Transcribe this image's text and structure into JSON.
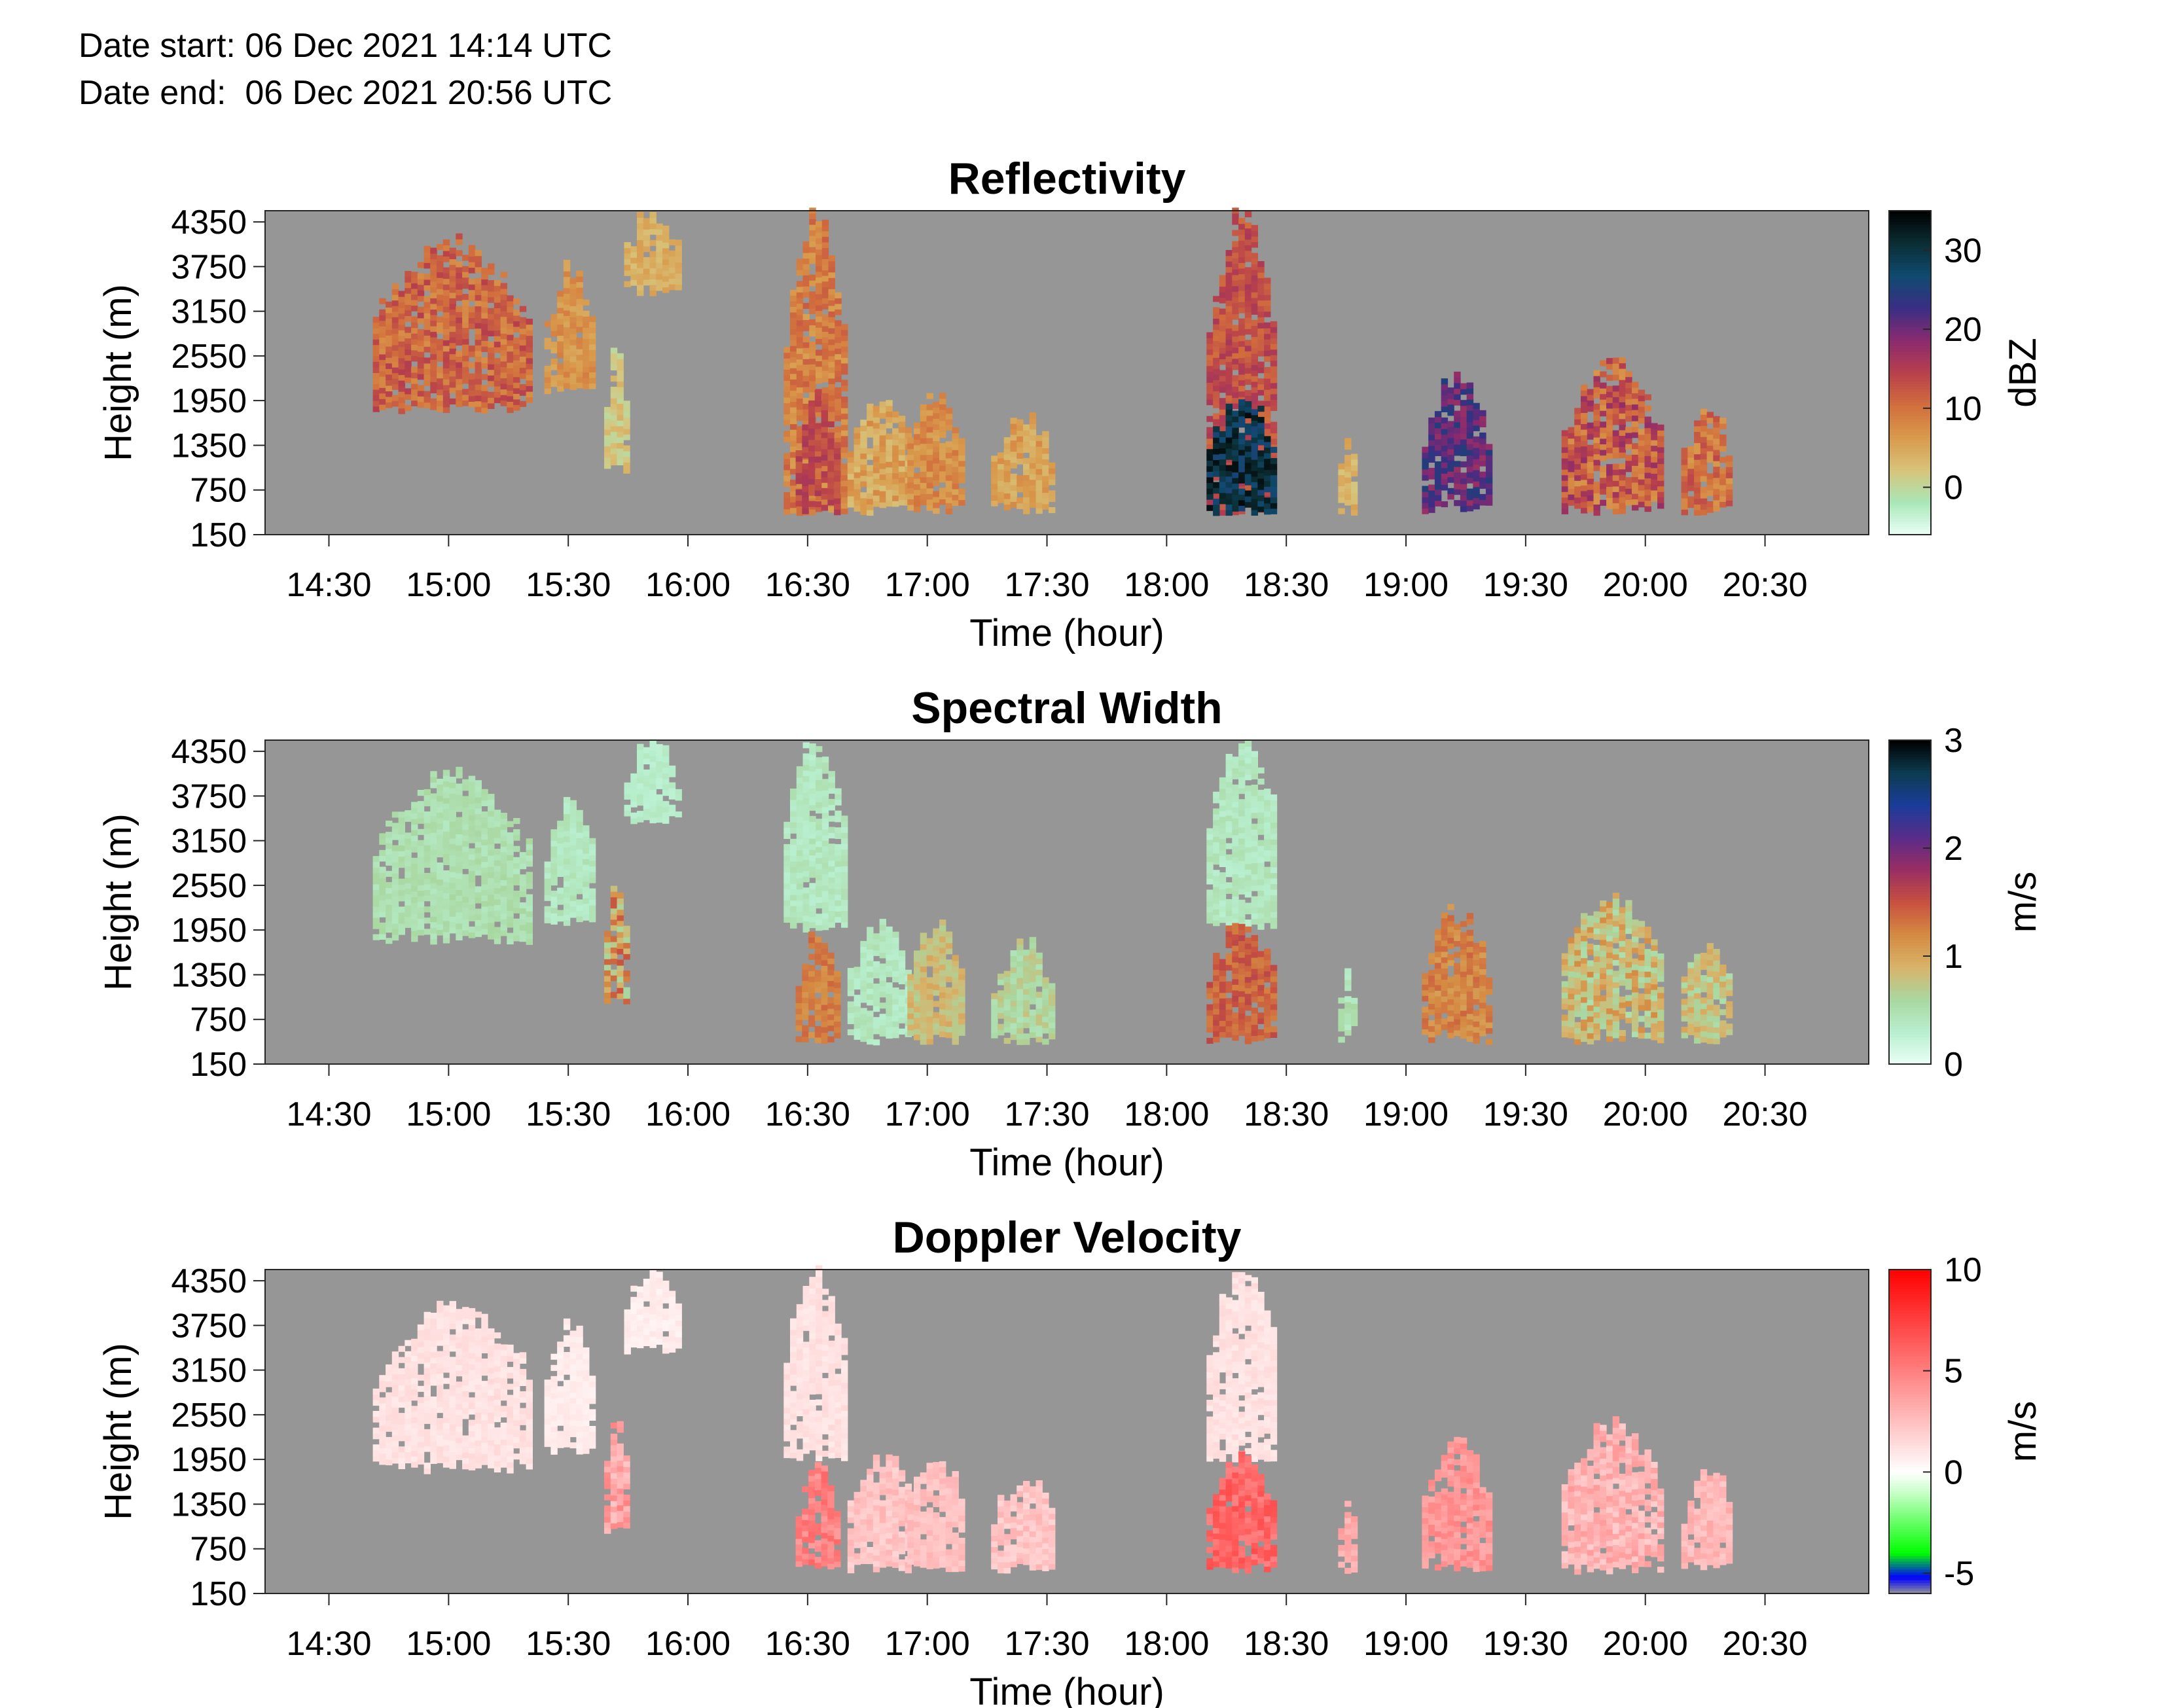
{
  "header": {
    "date_start": "Date start: 06 Dec 2021 14:14 UTC",
    "date_end": "Date end:  06 Dec 2021 20:56 UTC"
  },
  "colors": {
    "background": "#ffffff",
    "no_data": "#969696",
    "reflectivity_scale": [
      "#ebfff7",
      "#a8e8b8",
      "#d8c37a",
      "#d99a4c",
      "#d26e3d",
      "#b8404c",
      "#8a2a6e",
      "#3a2e85",
      "#0f4a70",
      "#0b2e34",
      "#000000"
    ],
    "spectral_width_scale": [
      "#ebfff7",
      "#b8efcf",
      "#a9d7a0",
      "#d8b36a",
      "#d58a42",
      "#c8513f",
      "#9a2d62",
      "#5a2c8a",
      "#1a3d9a",
      "#0c3b50",
      "#000000"
    ],
    "doppler_scale_stops": [
      "#969696",
      "#0000ff",
      "#00ff00",
      "#c8ffc8",
      "#ffffff",
      "#ffcccc",
      "#ff6666",
      "#ff0000"
    ]
  },
  "chart_data": [
    {
      "type": "heatmap",
      "title": "Reflectivity",
      "xlabel": "Time (hour)",
      "ylabel": "Height (m)",
      "colorbar_label": "dBZ",
      "xlim": [
        "14:14",
        "20:56"
      ],
      "ylim": [
        150,
        4500
      ],
      "xticks": [
        "14:30",
        "15:00",
        "15:30",
        "16:00",
        "16:30",
        "17:00",
        "17:30",
        "18:00",
        "18:30",
        "19:00",
        "19:30",
        "20:00",
        "20:30"
      ],
      "yticks": [
        150,
        750,
        1350,
        1950,
        2550,
        3150,
        3750,
        4350
      ],
      "colorbar_range": [
        -6,
        35
      ],
      "colorbar_ticks": [
        0,
        10,
        20,
        30
      ],
      "grid": false,
      "echo_regions": [
        {
          "t0": "14:41",
          "t1": "15:20",
          "h_bottom": 1800,
          "h_top": 4000,
          "value_range": [
            4,
            15
          ]
        },
        {
          "t0": "15:24",
          "t1": "15:36",
          "h_bottom": 2050,
          "h_top": 3700,
          "value_range": [
            3,
            9
          ]
        },
        {
          "t0": "15:39",
          "t1": "15:44",
          "h_bottom": 1000,
          "h_top": 2600,
          "value_range": [
            -2,
            4
          ]
        },
        {
          "t0": "15:44",
          "t1": "15:57",
          "h_bottom": 3400,
          "h_top": 4450,
          "value_range": [
            1,
            6
          ]
        },
        {
          "t0": "16:24",
          "t1": "16:39",
          "h_bottom": 450,
          "h_top": 4450,
          "value_range": [
            3,
            12
          ]
        },
        {
          "t0": "16:27",
          "t1": "16:37",
          "h_bottom": 450,
          "h_top": 1950,
          "value_range": [
            10,
            16
          ]
        },
        {
          "t0": "16:40",
          "t1": "16:56",
          "h_bottom": 450,
          "h_top": 1950,
          "value_range": [
            0,
            8
          ]
        },
        {
          "t0": "16:55",
          "t1": "17:09",
          "h_bottom": 450,
          "h_top": 2000,
          "value_range": [
            3,
            10
          ]
        },
        {
          "t0": "17:16",
          "t1": "17:31",
          "h_bottom": 450,
          "h_top": 1700,
          "value_range": [
            1,
            8
          ]
        },
        {
          "t0": "18:10",
          "t1": "18:27",
          "h_bottom": 450,
          "h_top": 4500,
          "value_range": [
            8,
            16
          ]
        },
        {
          "t0": "18:10",
          "t1": "18:27",
          "h_bottom": 450,
          "h_top": 1950,
          "value_range": [
            22,
            34
          ]
        },
        {
          "t0": "18:43",
          "t1": "18:47",
          "h_bottom": 450,
          "h_top": 1300,
          "value_range": [
            0,
            6
          ]
        },
        {
          "t0": "19:04",
          "t1": "19:20",
          "h_bottom": 450,
          "h_top": 2200,
          "value_range": [
            14,
            25
          ]
        },
        {
          "t0": "19:39",
          "t1": "20:03",
          "h_bottom": 450,
          "h_top": 2400,
          "value_range": [
            2,
            18
          ]
        },
        {
          "t0": "20:09",
          "t1": "20:21",
          "h_bottom": 450,
          "h_top": 1800,
          "value_range": [
            3,
            14
          ]
        }
      ]
    },
    {
      "type": "heatmap",
      "title": "Spectral Width",
      "xlabel": "Time (hour)",
      "ylabel": "Height (m)",
      "colorbar_label": "m/s",
      "xlim": [
        "14:14",
        "20:56"
      ],
      "ylim": [
        150,
        4500
      ],
      "xticks": [
        "14:30",
        "15:00",
        "15:30",
        "16:00",
        "16:30",
        "17:00",
        "17:30",
        "18:00",
        "18:30",
        "19:00",
        "19:30",
        "20:00",
        "20:30"
      ],
      "yticks": [
        150,
        750,
        1350,
        1950,
        2550,
        3150,
        3750,
        4350
      ],
      "colorbar_range": [
        0,
        3
      ],
      "colorbar_ticks": [
        0,
        1,
        2,
        3
      ],
      "grid": false,
      "echo_regions": [
        {
          "t0": "14:41",
          "t1": "15:20",
          "h_bottom": 1800,
          "h_top": 4000,
          "value_range": [
            0.3,
            0.6
          ]
        },
        {
          "t0": "15:24",
          "t1": "15:36",
          "h_bottom": 2050,
          "h_top": 3700,
          "value_range": [
            0.2,
            0.5
          ]
        },
        {
          "t0": "15:39",
          "t1": "15:44",
          "h_bottom": 1000,
          "h_top": 2600,
          "value_range": [
            0.2,
            1.5
          ]
        },
        {
          "t0": "15:44",
          "t1": "15:57",
          "h_bottom": 3400,
          "h_top": 4450,
          "value_range": [
            0.2,
            0.4
          ]
        },
        {
          "t0": "16:24",
          "t1": "16:39",
          "h_bottom": 1950,
          "h_top": 4450,
          "value_range": [
            0.2,
            0.5
          ]
        },
        {
          "t0": "16:27",
          "t1": "16:37",
          "h_bottom": 450,
          "h_top": 1950,
          "value_range": [
            1.0,
            1.4
          ]
        },
        {
          "t0": "16:40",
          "t1": "16:56",
          "h_bottom": 450,
          "h_top": 1950,
          "value_range": [
            0.2,
            0.5
          ]
        },
        {
          "t0": "16:55",
          "t1": "17:09",
          "h_bottom": 450,
          "h_top": 2000,
          "value_range": [
            0.5,
            1.0
          ]
        },
        {
          "t0": "17:16",
          "t1": "17:31",
          "h_bottom": 450,
          "h_top": 1700,
          "value_range": [
            0.3,
            0.8
          ]
        },
        {
          "t0": "18:10",
          "t1": "18:27",
          "h_bottom": 1950,
          "h_top": 4500,
          "value_range": [
            0.2,
            0.5
          ]
        },
        {
          "t0": "18:10",
          "t1": "18:27",
          "h_bottom": 450,
          "h_top": 1950,
          "value_range": [
            1.1,
            1.6
          ]
        },
        {
          "t0": "18:43",
          "t1": "18:47",
          "h_bottom": 450,
          "h_top": 1300,
          "value_range": [
            0.2,
            0.6
          ]
        },
        {
          "t0": "19:04",
          "t1": "19:20",
          "h_bottom": 450,
          "h_top": 2200,
          "value_range": [
            0.9,
            1.4
          ]
        },
        {
          "t0": "19:39",
          "t1": "20:03",
          "h_bottom": 450,
          "h_top": 2400,
          "value_range": [
            0.2,
            1.2
          ]
        },
        {
          "t0": "20:09",
          "t1": "20:21",
          "h_bottom": 450,
          "h_top": 1800,
          "value_range": [
            0.3,
            1.0
          ]
        }
      ]
    },
    {
      "type": "heatmap",
      "title": "Doppler Velocity",
      "xlabel": "Time (hour)",
      "ylabel": "Height (m)",
      "colorbar_label": "m/s",
      "xlim": [
        "14:14",
        "20:56"
      ],
      "ylim": [
        150,
        4500
      ],
      "xticks": [
        "14:30",
        "15:00",
        "15:30",
        "16:00",
        "16:30",
        "17:00",
        "17:30",
        "18:00",
        "18:30",
        "19:00",
        "19:30",
        "20:00",
        "20:30"
      ],
      "yticks": [
        150,
        750,
        1350,
        1950,
        2550,
        3150,
        3750,
        4350
      ],
      "colorbar_range": [
        -6,
        10
      ],
      "colorbar_ticks": [
        -5,
        0,
        5,
        10
      ],
      "grid": false,
      "echo_regions": [
        {
          "t0": "14:41",
          "t1": "15:20",
          "h_bottom": 1800,
          "h_top": 4000,
          "value_range": [
            0.5,
            1.5
          ]
        },
        {
          "t0": "15:24",
          "t1": "15:36",
          "h_bottom": 2050,
          "h_top": 3700,
          "value_range": [
            0.3,
            1.0
          ]
        },
        {
          "t0": "15:39",
          "t1": "15:44",
          "h_bottom": 1000,
          "h_top": 2600,
          "value_range": [
            1.0,
            5.0
          ]
        },
        {
          "t0": "15:44",
          "t1": "15:57",
          "h_bottom": 3400,
          "h_top": 4450,
          "value_range": [
            0.2,
            1.0
          ]
        },
        {
          "t0": "16:24",
          "t1": "16:39",
          "h_bottom": 1950,
          "h_top": 4450,
          "value_range": [
            0.5,
            1.5
          ]
        },
        {
          "t0": "16:27",
          "t1": "16:37",
          "h_bottom": 450,
          "h_top": 1950,
          "value_range": [
            3.0,
            6.0
          ]
        },
        {
          "t0": "16:40",
          "t1": "16:56",
          "h_bottom": 450,
          "h_top": 1950,
          "value_range": [
            1.0,
            3.0
          ]
        },
        {
          "t0": "16:55",
          "t1": "17:09",
          "h_bottom": 450,
          "h_top": 2000,
          "value_range": [
            1.5,
            3.0
          ]
        },
        {
          "t0": "17:16",
          "t1": "17:31",
          "h_bottom": 450,
          "h_top": 1700,
          "value_range": [
            1.0,
            3.0
          ]
        },
        {
          "t0": "18:10",
          "t1": "18:27",
          "h_bottom": 1950,
          "h_top": 4500,
          "value_range": [
            0.5,
            1.5
          ]
        },
        {
          "t0": "18:10",
          "t1": "18:27",
          "h_bottom": 450,
          "h_top": 1950,
          "value_range": [
            4.0,
            7.0
          ]
        },
        {
          "t0": "18:43",
          "t1": "18:47",
          "h_bottom": 450,
          "h_top": 1300,
          "value_range": [
            2.0,
            4.0
          ]
        },
        {
          "t0": "19:04",
          "t1": "19:20",
          "h_bottom": 450,
          "h_top": 2200,
          "value_range": [
            2.5,
            5.0
          ]
        },
        {
          "t0": "19:39",
          "t1": "20:03",
          "h_bottom": 450,
          "h_top": 2400,
          "value_range": [
            1.0,
            4.0
          ]
        },
        {
          "t0": "20:09",
          "t1": "20:21",
          "h_bottom": 450,
          "h_top": 1800,
          "value_range": [
            1.5,
            3.5
          ]
        }
      ]
    }
  ]
}
